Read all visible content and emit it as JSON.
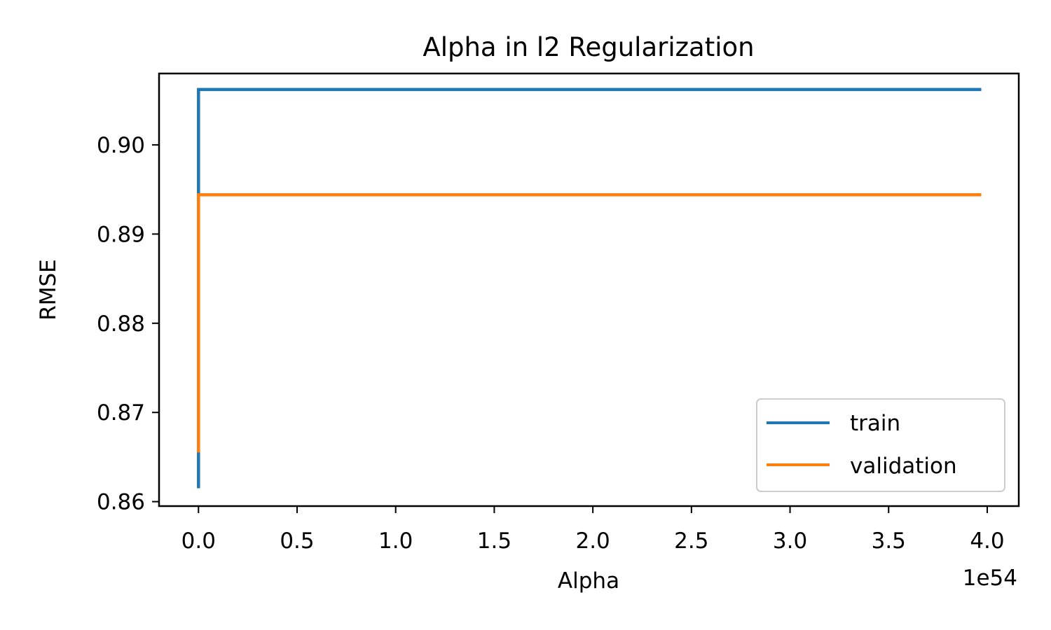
{
  "chart_data": {
    "type": "line",
    "title": "Alpha in l2 Regularization",
    "xlabel": "Alpha",
    "ylabel": "RMSE",
    "x_offset_label": "1e54",
    "xlim": [
      -0.2,
      4.16
    ],
    "ylim": [
      0.8595,
      0.908
    ],
    "xticks": [
      0.0,
      0.5,
      1.0,
      1.5,
      2.0,
      2.5,
      3.0,
      3.5,
      4.0
    ],
    "xtick_labels": [
      "0.0",
      "0.5",
      "1.0",
      "1.5",
      "2.0",
      "2.5",
      "3.0",
      "3.5",
      "4.0"
    ],
    "yticks": [
      0.86,
      0.87,
      0.88,
      0.89,
      0.9
    ],
    "ytick_labels": [
      "0.86",
      "0.87",
      "0.88",
      "0.89",
      "0.90"
    ],
    "grid": false,
    "legend_position": "lower-right",
    "series": [
      {
        "name": "train",
        "color": "#1f77b4",
        "points": [
          [
            0,
            0.8615
          ],
          [
            0,
            0.8652
          ],
          [
            0,
            0.9062
          ],
          [
            3.97,
            0.9062
          ]
        ]
      },
      {
        "name": "validation",
        "color": "#ff7f0e",
        "points": [
          [
            0,
            0.8655
          ],
          [
            0,
            0.8944
          ],
          [
            3.97,
            0.8944
          ]
        ]
      }
    ]
  }
}
